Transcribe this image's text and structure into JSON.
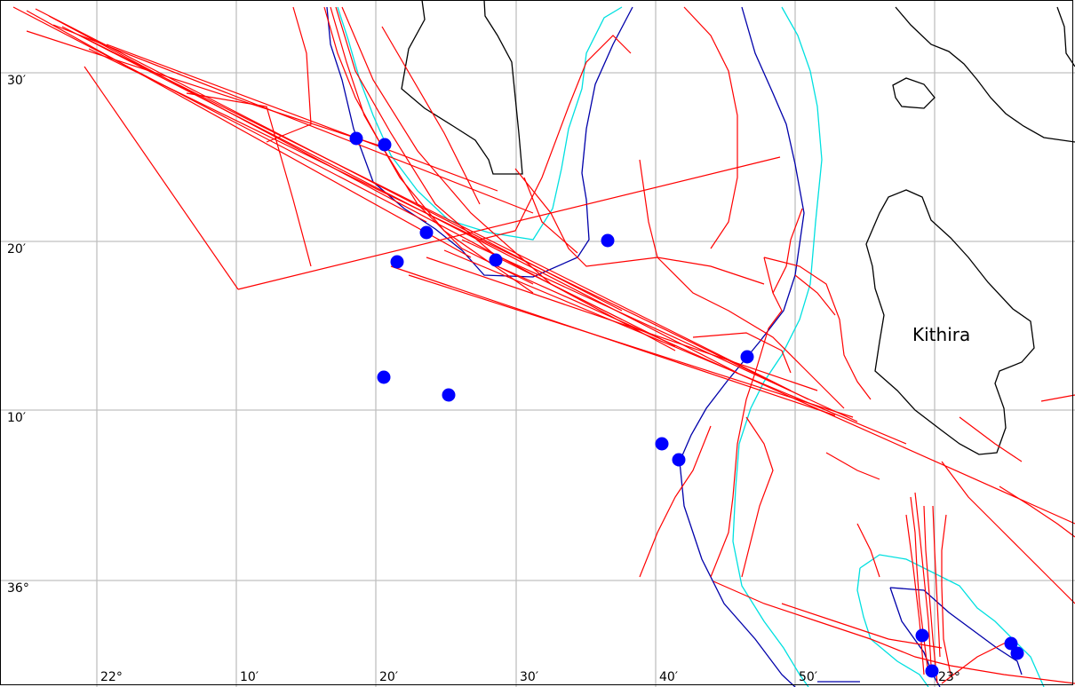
{
  "map": {
    "island_label": "Kithira",
    "latitude_labels": [
      {
        "text": "30′"
      },
      {
        "text": "20′"
      },
      {
        "text": "10′"
      },
      {
        "text": "36°"
      }
    ],
    "longitude_labels": [
      {
        "text": "22°"
      },
      {
        "text": "10′"
      },
      {
        "text": "20′"
      },
      {
        "text": "30′"
      },
      {
        "text": "40′"
      },
      {
        "text": "50′"
      },
      {
        "text": "23°"
      }
    ],
    "colors": {
      "grid": "#c0c0c0",
      "coastline": "#000000",
      "tracks": "#ff0000",
      "depth_contour_dark": "#0000aa",
      "depth_contour_light": "#00e0e0",
      "stations": "#0000ff"
    },
    "layers": [
      "coastline",
      "depth-contour-dark",
      "depth-contour-light",
      "ship-tracks",
      "stations"
    ]
  }
}
